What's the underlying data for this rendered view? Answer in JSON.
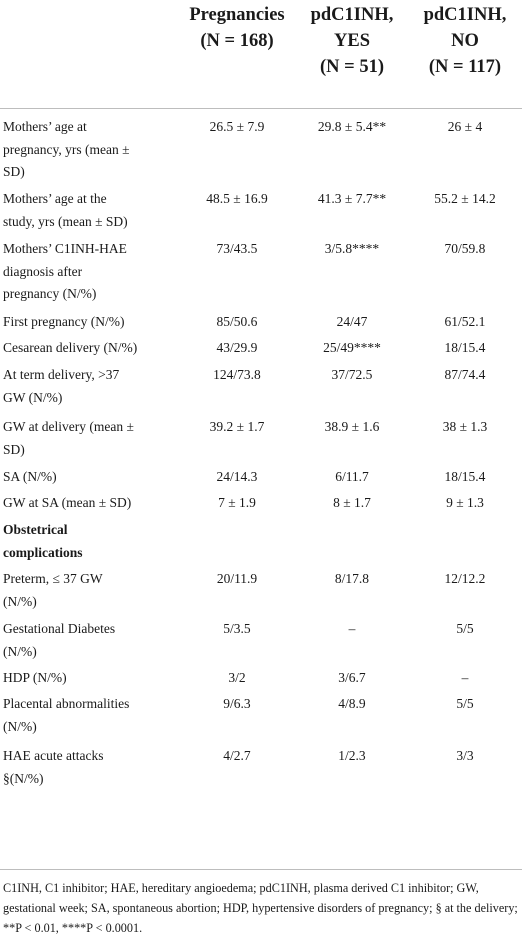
{
  "table": {
    "headers": [
      {
        "line1": "Pregnancies",
        "line2": "(N = 168)",
        "line3": ""
      },
      {
        "line1": "pdC1INH,",
        "line2": "YES",
        "line3": "(N = 51)"
      },
      {
        "line1": "pdC1INH,",
        "line2": "NO",
        "line3": "(N = 117)"
      }
    ],
    "rows": [
      {
        "label": [
          "Mothers’ age at",
          "pregnancy, yrs (mean ±",
          "SD)"
        ],
        "v1": "26.5 ± 7.9",
        "v2": "29.8 ± 5.4**",
        "v3": "26 ± 4"
      },
      {
        "label": [
          "Mothers’ age at the",
          "study, yrs (mean ± SD)"
        ],
        "v1": "48.5 ± 16.9",
        "v2": "41.3 ± 7.7**",
        "v3": "55.2 ± 14.2"
      },
      {
        "label": [
          "Mothers’ C1INH-HAE",
          "diagnosis after",
          "pregnancy (N/%)"
        ],
        "v1": "73/43.5",
        "v2": "3/5.8****",
        "v3": "70/59.8"
      },
      {
        "label": [
          "First pregnancy (N/%)"
        ],
        "v1": "85/50.6",
        "v2": "24/47",
        "v3": "61/52.1"
      },
      {
        "label": [
          "Cesarean delivery (N/%)"
        ],
        "v1": "43/29.9",
        "v2": "25/49****",
        "v3": "18/15.4"
      },
      {
        "label": [
          "At term delivery, >37",
          "GW (N/%)"
        ],
        "v1": "124/73.8",
        "v2": "37/72.5",
        "v3": "87/74.4"
      },
      {
        "label": [
          "GW at delivery (mean ±",
          "SD)"
        ],
        "v1": "39.2 ± 1.7",
        "v2": "38.9 ± 1.6",
        "v3": "38 ± 1.3"
      },
      {
        "label": [
          "SA (N/%)"
        ],
        "v1": "24/14.3",
        "v2": "6/11.7",
        "v3": "18/15.4"
      },
      {
        "label": [
          "GW at SA (mean ± SD)"
        ],
        "v1": "7 ± 1.9",
        "v2": "8 ± 1.7",
        "v3": "9 ± 1.3"
      },
      {
        "label": [
          "Obstetrical",
          "complications"
        ],
        "v1": "",
        "v2": "",
        "v3": "",
        "bold": true
      },
      {
        "label": [
          "Preterm, ≤ 37 GW",
          "(N/%)"
        ],
        "v1": "20/11.9",
        "v2": "8/17.8",
        "v3": "12/12.2"
      },
      {
        "label": [
          "Gestational Diabetes",
          "(N/%)"
        ],
        "v1": "5/3.5",
        "v2": "–",
        "v3": "5/5"
      },
      {
        "label": [
          "HDP (N/%)"
        ],
        "v1": "3/2",
        "v2": "3/6.7",
        "v3": "–"
      },
      {
        "label": [
          "Placental abnormalities",
          "(N/%)"
        ],
        "v1": "9/6.3",
        "v2": "4/8.9",
        "v3": "5/5"
      },
      {
        "label": [
          "HAE acute attacks",
          "§(N/%)"
        ],
        "v1": "4/2.7",
        "v2": "1/2.3",
        "v3": "3/3"
      }
    ],
    "footnote": "C1INH, C1 inhibitor; HAE, hereditary angioedema; pdC1INH, plasma derived C1 inhibitor; GW, gestational week; SA, spontaneous abortion; HDP, hypertensive disorders of pregnancy; § at the delivery; **P < 0.01, ****P < 0.0001."
  }
}
